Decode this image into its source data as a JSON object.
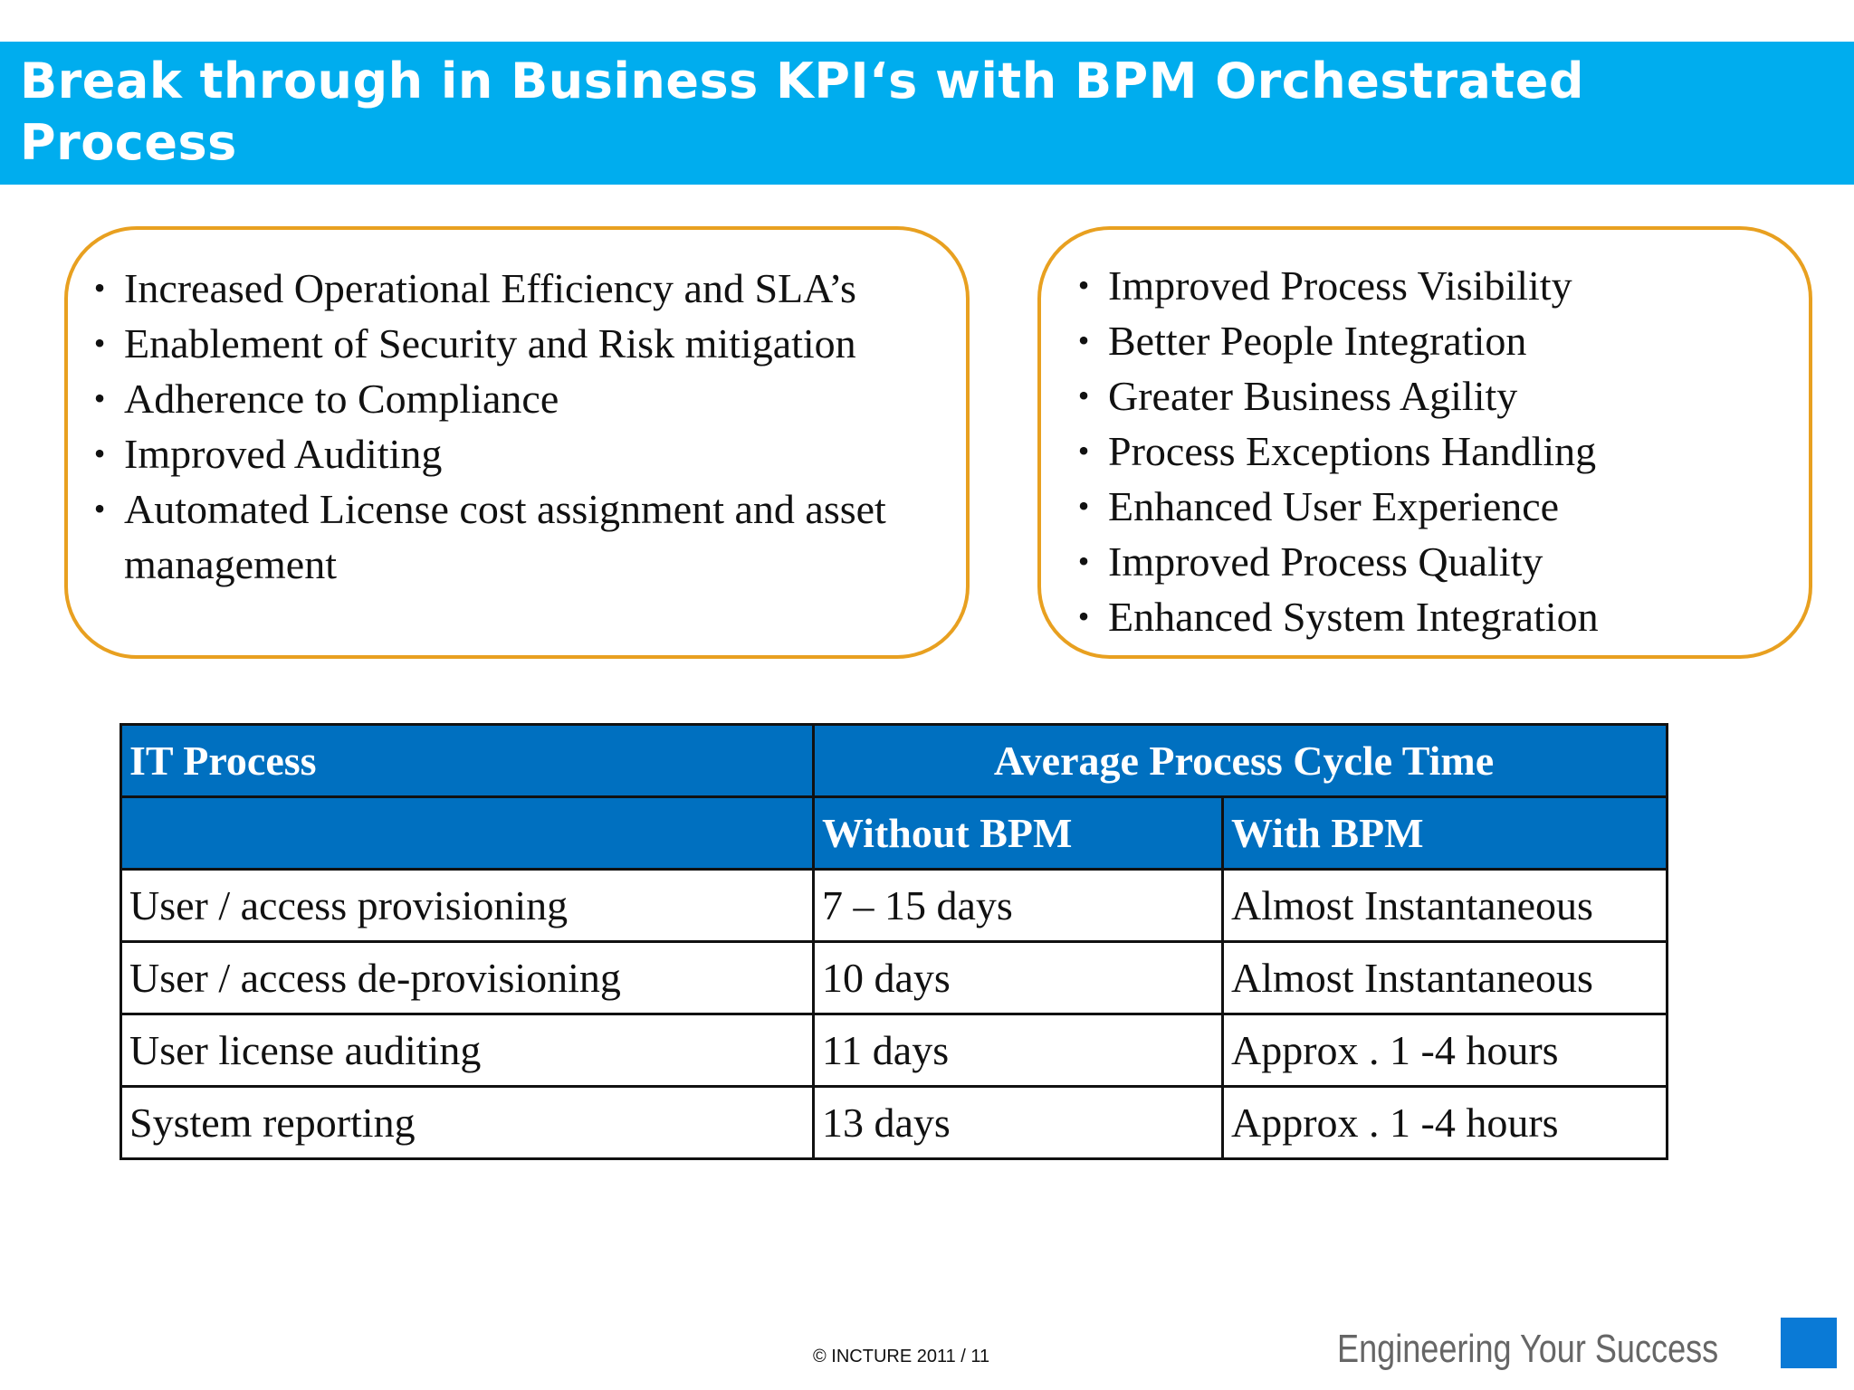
{
  "header": {
    "title_line1": "Break through in Business KPI‘s with BPM Orchestrated",
    "title_line2": "Process"
  },
  "left_box": {
    "items": [
      "Increased Operational Efficiency and SLA’s",
      "Enablement of  Security and Risk mitigation",
      "Adherence to Compliance",
      "Improved Auditing",
      "Automated License cost assignment and asset management"
    ]
  },
  "right_box": {
    "items": [
      "Improved Process Visibility",
      "Better People Integration",
      "Greater Business Agility",
      "Process Exceptions Handling",
      "Enhanced User Experience",
      "Improved Process Quality",
      "Enhanced System Integration"
    ]
  },
  "bullet_symbol": "•",
  "table": {
    "header": {
      "col1": "IT Process",
      "group": "Average Process Cycle Time",
      "sub_col1": "",
      "sub_col2": "Without BPM",
      "sub_col3": "With BPM"
    },
    "rows": [
      {
        "process": "User / access provisioning",
        "without": "7 – 15 days",
        "with": "Almost Instantaneous"
      },
      {
        "process": "User / access de-provisioning",
        "without": "10 days",
        "with": "Almost Instantaneous"
      },
      {
        "process": "User license auditing",
        "without": "11 days",
        "with": "Approx . 1 -4 hours"
      },
      {
        "process": "System reporting",
        "without": "13 days",
        "with": "Approx . 1 -4 hours"
      }
    ]
  },
  "footer": {
    "copyright": "©   INCTURE 2011 / 11",
    "tagline": "Engineering Your Success"
  },
  "colors": {
    "title_bar": "#00adee",
    "box_border": "#e8a020",
    "table_header": "#0070c0",
    "footer_square": "#0a7ad6"
  }
}
